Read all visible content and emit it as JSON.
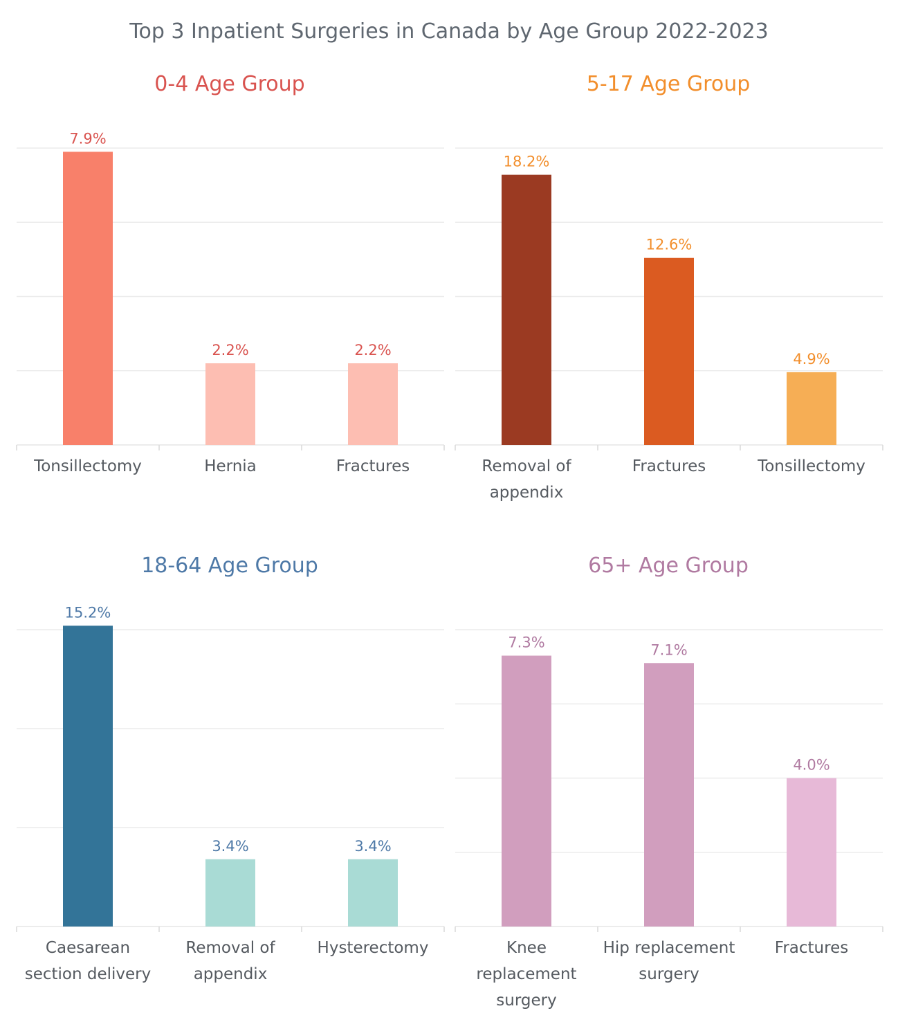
{
  "title": "Top 3 Inpatient Surgeries in Canada by Age Group 2022-2023",
  "chart_data": [
    {
      "type": "bar",
      "title": "0-4 Age Group",
      "title_color": "#d9534f",
      "label_color": "#d9534f",
      "categories": [
        [
          "Tonsillectomy"
        ],
        [
          "Hernia"
        ],
        [
          "Fractures"
        ]
      ],
      "values": [
        7.9,
        2.2,
        2.2
      ],
      "value_labels": [
        "7.9%",
        "2.2%",
        "2.2%"
      ],
      "bar_colors": [
        "#f8806a",
        "#fdbeb2",
        "#fdbeb2"
      ],
      "ylim": [
        0,
        8
      ],
      "grid_values": [
        2,
        4,
        6,
        8
      ],
      "grid": true
    },
    {
      "type": "bar",
      "title": "5-17 Age Group",
      "title_color": "#f28e2b",
      "label_color": "#f28e2b",
      "categories": [
        [
          "Removal of",
          "appendix"
        ],
        [
          "Fractures"
        ],
        [
          "Tonsillectomy"
        ]
      ],
      "values": [
        18.2,
        12.6,
        4.9
      ],
      "value_labels": [
        "18.2%",
        "12.6%",
        "4.9%"
      ],
      "bar_colors": [
        "#9b3a22",
        "#db5b21",
        "#f6ae55"
      ],
      "ylim": [
        0,
        20
      ],
      "grid_values": [
        5,
        10,
        15,
        20
      ],
      "grid": true
    },
    {
      "type": "bar",
      "title": "18-64 Age Group",
      "title_color": "#4e79a7",
      "label_color": "#4e79a7",
      "categories": [
        [
          "Caesarean",
          "section delivery"
        ],
        [
          "Removal of",
          "appendix"
        ],
        [
          "Hysterectomy"
        ]
      ],
      "values": [
        15.2,
        3.4,
        3.4
      ],
      "value_labels": [
        "15.2%",
        "3.4%",
        "3.4%"
      ],
      "bar_colors": [
        "#337498",
        "#a9dbd5",
        "#a9dbd5"
      ],
      "ylim": [
        0,
        15
      ],
      "grid_values": [
        5,
        10,
        15
      ],
      "grid": true
    },
    {
      "type": "bar",
      "title": "65+ Age Group",
      "title_color": "#b07aa1",
      "label_color": "#b07aa1",
      "categories": [
        [
          "Knee",
          "replacement",
          "surgery"
        ],
        [
          "Hip replacement",
          "surgery"
        ],
        [
          "Fractures"
        ]
      ],
      "values": [
        7.3,
        7.1,
        4.0
      ],
      "value_labels": [
        "7.3%",
        "7.1%",
        "4.0%"
      ],
      "bar_colors": [
        "#d19ebe",
        "#d19ebe",
        "#e7b9d7"
      ],
      "ylim": [
        0,
        8
      ],
      "grid_values": [
        2,
        4,
        6,
        8
      ],
      "grid": true
    }
  ]
}
